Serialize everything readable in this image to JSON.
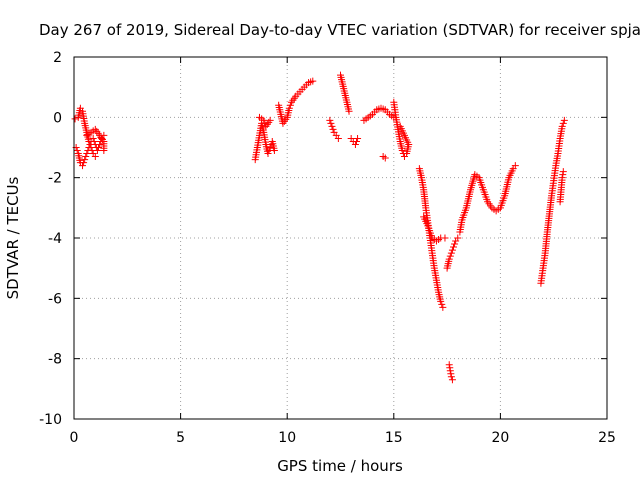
{
  "chart_data": {
    "type": "scatter",
    "title": "Day 267 of 2019, Sidereal Day-to-day VTEC variation (SDTVAR) for receiver spja",
    "xlabel": "GPS time / hours",
    "ylabel": "SDTVAR / TECUs",
    "xlim": [
      0,
      25
    ],
    "ylim": [
      -10,
      2
    ],
    "xticks": [
      0,
      5,
      10,
      15,
      20,
      25
    ],
    "yticks": [
      -10,
      -8,
      -6,
      -4,
      -2,
      0,
      2
    ],
    "xtick_labels": [
      "0",
      "5",
      "10",
      "15",
      "20",
      "25"
    ],
    "ytick_labels": [
      "-10",
      "-8",
      "-6",
      "-4",
      "-2",
      "0",
      "2"
    ],
    "grid": true,
    "marker": "plus",
    "color": "#ff0000",
    "segments": [
      [
        [
          0.05,
          -0.05
        ],
        [
          0.2,
          0.0
        ],
        [
          0.3,
          0.3
        ],
        [
          0.4,
          0.2
        ],
        [
          0.5,
          -0.2
        ],
        [
          0.6,
          -0.5
        ],
        [
          0.7,
          -0.8
        ],
        [
          0.8,
          -1.0
        ],
        [
          0.9,
          -1.2
        ],
        [
          1.0,
          -1.3
        ]
      ],
      [
        [
          0.1,
          -1.0
        ],
        [
          0.2,
          -1.2
        ],
        [
          0.3,
          -1.5
        ],
        [
          0.4,
          -1.6
        ],
        [
          0.5,
          -1.4
        ],
        [
          0.6,
          -1.2
        ],
        [
          0.7,
          -1.0
        ],
        [
          0.8,
          -0.8
        ],
        [
          0.9,
          -0.7
        ],
        [
          1.0,
          -0.9
        ],
        [
          1.1,
          -1.1
        ],
        [
          1.2,
          -0.9
        ],
        [
          1.3,
          -0.7
        ],
        [
          1.4,
          -0.6
        ]
      ],
      [
        [
          0.6,
          -0.6
        ],
        [
          0.8,
          -0.5
        ],
        [
          1.0,
          -0.4
        ],
        [
          1.2,
          -0.6
        ],
        [
          1.4,
          -0.8
        ],
        [
          1.4,
          -1.1
        ]
      ],
      [
        [
          8.5,
          -1.4
        ],
        [
          8.6,
          -1.0
        ],
        [
          8.7,
          -0.6
        ],
        [
          8.8,
          -0.2
        ],
        [
          8.9,
          -0.5
        ],
        [
          9.0,
          -0.9
        ],
        [
          9.1,
          -1.2
        ],
        [
          9.2,
          -1.0
        ],
        [
          9.3,
          -0.8
        ],
        [
          9.4,
          -1.1
        ]
      ],
      [
        [
          8.7,
          0.0
        ],
        [
          8.9,
          -0.1
        ],
        [
          9.0,
          -0.3
        ],
        [
          9.2,
          -0.1
        ]
      ],
      [
        [
          9.6,
          0.4
        ],
        [
          9.8,
          -0.2
        ],
        [
          10.0,
          0.0
        ],
        [
          10.1,
          0.3
        ],
        [
          10.2,
          0.5
        ],
        [
          10.4,
          0.7
        ],
        [
          10.6,
          0.85
        ],
        [
          10.8,
          1.0
        ],
        [
          11.0,
          1.15
        ],
        [
          11.2,
          1.2
        ]
      ],
      [
        [
          12.0,
          -0.1
        ],
        [
          12.1,
          -0.3
        ],
        [
          12.2,
          -0.5
        ],
        [
          12.3,
          -0.6
        ],
        [
          12.4,
          -0.7
        ]
      ],
      [
        [
          12.5,
          1.4
        ],
        [
          12.6,
          1.1
        ],
        [
          12.7,
          0.8
        ],
        [
          12.8,
          0.5
        ],
        [
          12.9,
          0.2
        ]
      ],
      [
        [
          13.0,
          -0.7
        ],
        [
          13.1,
          -0.8
        ],
        [
          13.2,
          -0.9
        ],
        [
          13.3,
          -0.7
        ]
      ],
      [
        [
          13.6,
          -0.1
        ],
        [
          13.8,
          0.0
        ],
        [
          14.0,
          0.1
        ],
        [
          14.2,
          0.25
        ],
        [
          14.4,
          0.3
        ],
        [
          14.6,
          0.25
        ],
        [
          14.8,
          0.1
        ],
        [
          15.0,
          0.0
        ]
      ],
      [
        [
          14.5,
          -1.3
        ],
        [
          14.6,
          -1.35
        ]
      ],
      [
        [
          15.0,
          0.5
        ],
        [
          15.1,
          0.0
        ],
        [
          15.2,
          -0.4
        ],
        [
          15.3,
          -0.8
        ],
        [
          15.4,
          -1.1
        ],
        [
          15.5,
          -1.3
        ],
        [
          15.6,
          -1.2
        ],
        [
          15.7,
          -0.9
        ],
        [
          15.5,
          -0.6
        ],
        [
          15.3,
          -0.3
        ]
      ],
      [
        [
          16.2,
          -1.7
        ],
        [
          16.3,
          -2.0
        ],
        [
          16.4,
          -2.4
        ],
        [
          16.5,
          -3.0
        ],
        [
          16.6,
          -3.5
        ],
        [
          16.7,
          -4.0
        ],
        [
          16.8,
          -4.5
        ],
        [
          16.9,
          -5.0
        ],
        [
          17.0,
          -5.4
        ],
        [
          17.1,
          -5.8
        ],
        [
          17.2,
          -6.1
        ],
        [
          17.3,
          -6.3
        ]
      ],
      [
        [
          16.4,
          -3.3
        ],
        [
          16.6,
          -3.6
        ],
        [
          16.8,
          -4.0
        ],
        [
          17.0,
          -4.1
        ],
        [
          17.2,
          -4.0
        ],
        [
          17.4,
          -4.0
        ]
      ],
      [
        [
          17.5,
          -5.0
        ],
        [
          17.6,
          -4.7
        ],
        [
          17.7,
          -4.5
        ],
        [
          17.8,
          -4.3
        ],
        [
          17.9,
          -4.1
        ],
        [
          18.0,
          -4.0
        ]
      ],
      [
        [
          17.6,
          -8.2
        ],
        [
          17.65,
          -8.4
        ],
        [
          17.7,
          -8.6
        ],
        [
          17.75,
          -8.7
        ]
      ],
      [
        [
          18.1,
          -3.8
        ],
        [
          18.2,
          -3.4
        ],
        [
          18.4,
          -3.0
        ],
        [
          18.6,
          -2.4
        ],
        [
          18.8,
          -1.9
        ],
        [
          19.0,
          -2.0
        ],
        [
          19.2,
          -2.4
        ],
        [
          19.4,
          -2.8
        ],
        [
          19.6,
          -3.0
        ],
        [
          19.8,
          -3.1
        ],
        [
          20.0,
          -3.0
        ],
        [
          20.2,
          -2.6
        ],
        [
          20.4,
          -2.0
        ],
        [
          20.6,
          -1.7
        ],
        [
          20.7,
          -1.6
        ]
      ],
      [
        [
          21.9,
          -5.5
        ],
        [
          22.0,
          -5.0
        ],
        [
          22.1,
          -4.5
        ],
        [
          22.2,
          -3.8
        ],
        [
          22.3,
          -3.2
        ],
        [
          22.4,
          -2.6
        ],
        [
          22.5,
          -2.1
        ],
        [
          22.6,
          -1.6
        ],
        [
          22.7,
          -1.2
        ],
        [
          22.8,
          -0.7
        ],
        [
          22.9,
          -0.3
        ],
        [
          23.0,
          -0.1
        ]
      ],
      [
        [
          22.8,
          -2.8
        ],
        [
          22.85,
          -2.4
        ],
        [
          22.9,
          -2.0
        ],
        [
          22.95,
          -1.8
        ]
      ]
    ]
  }
}
